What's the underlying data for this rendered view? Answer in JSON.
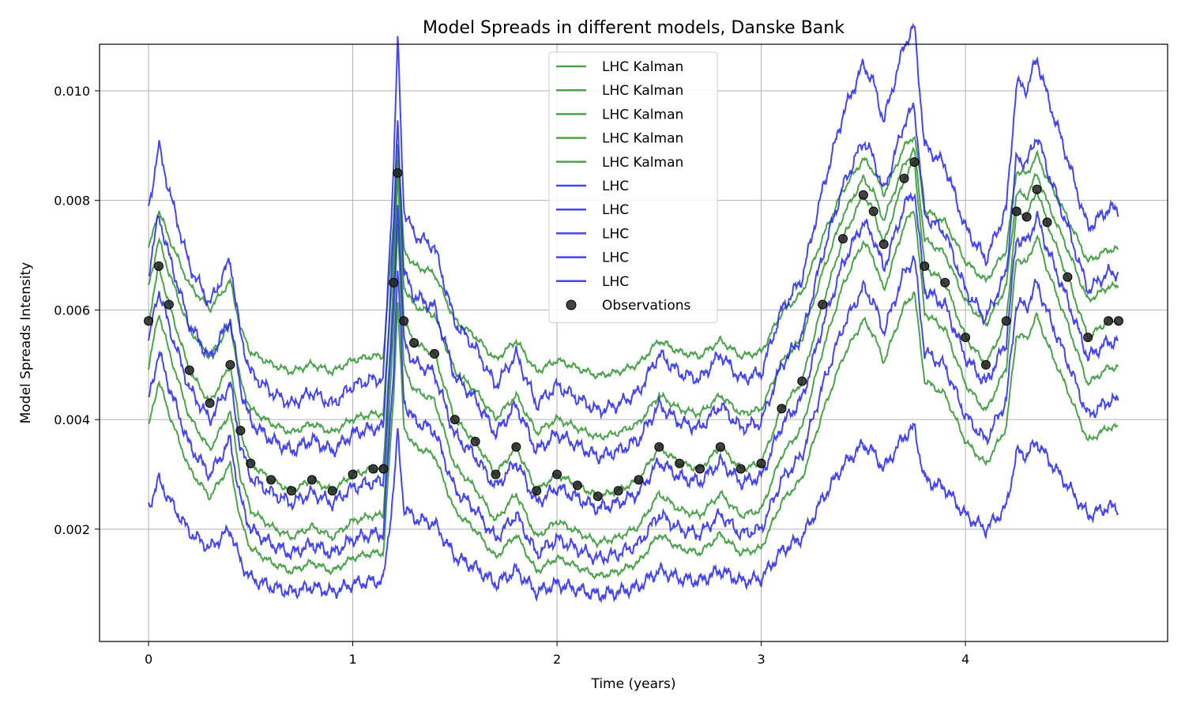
{
  "chart_data": {
    "type": "line",
    "title": "Model Spreads in different models, Danske Bank",
    "xlabel": "Time (years)",
    "ylabel": "Model Spreads Intensity",
    "xlim": [
      -0.24,
      4.99
    ],
    "ylim": [
      -5e-05,
      0.01085
    ],
    "xticks": [
      0,
      1,
      2,
      3,
      4
    ],
    "xtick_labels": [
      "0",
      "1",
      "2",
      "3",
      "4"
    ],
    "yticks": [
      0.002,
      0.004,
      0.006,
      0.008,
      0.01
    ],
    "ytick_labels": [
      "0.002",
      "0.004",
      "0.006",
      "0.008",
      "0.010"
    ],
    "grid": true,
    "legend_position": "top-center",
    "colors": {
      "kalman": "#2e932e",
      "lhc": "#2424f0",
      "observations": "#222222"
    },
    "observations": {
      "name": "Observations",
      "x": [
        0,
        0.05,
        0.1,
        0.2,
        0.3,
        0.4,
        0.45,
        0.5,
        0.6,
        0.7,
        0.8,
        0.9,
        1.0,
        1.1,
        1.15,
        1.2,
        1.22,
        1.25,
        1.3,
        1.4,
        1.5,
        1.6,
        1.7,
        1.8,
        1.9,
        2.0,
        2.1,
        2.2,
        2.3,
        2.4,
        2.5,
        2.6,
        2.7,
        2.8,
        2.9,
        3.0,
        3.1,
        3.2,
        3.3,
        3.4,
        3.5,
        3.55,
        3.6,
        3.7,
        3.75,
        3.8,
        3.9,
        4.0,
        4.1,
        4.2,
        4.25,
        4.3,
        4.35,
        4.4,
        4.5,
        4.6,
        4.7,
        4.75
      ],
      "y": [
        0.0058,
        0.0068,
        0.0061,
        0.0049,
        0.0043,
        0.005,
        0.0038,
        0.0032,
        0.0029,
        0.0027,
        0.0029,
        0.0027,
        0.003,
        0.0031,
        0.0031,
        0.0065,
        0.0085,
        0.0058,
        0.0054,
        0.0052,
        0.004,
        0.0036,
        0.003,
        0.0035,
        0.0027,
        0.003,
        0.0028,
        0.0026,
        0.0027,
        0.0029,
        0.0035,
        0.0032,
        0.0031,
        0.0035,
        0.0031,
        0.0032,
        0.0042,
        0.0047,
        0.0061,
        0.0073,
        0.0081,
        0.0078,
        0.0072,
        0.0084,
        0.0087,
        0.0068,
        0.0065,
        0.0055,
        0.005,
        0.0058,
        0.0078,
        0.0077,
        0.0082,
        0.0076,
        0.0066,
        0.0055,
        0.0058,
        0.0058
      ]
    },
    "series": [
      {
        "name": "LHC Kalman",
        "kind": "kalman",
        "offset": 0.00175,
        "scale": 0.72
      },
      {
        "name": "LHC Kalman",
        "kind": "kalman",
        "offset": 0.00085,
        "scale": 0.86
      },
      {
        "name": "LHC Kalman",
        "kind": "kalman",
        "offset": 0.0,
        "scale": 1.0
      },
      {
        "name": "LHC Kalman",
        "kind": "kalman",
        "offset": -0.00085,
        "scale": 1.0
      },
      {
        "name": "LHC Kalman",
        "kind": "kalman",
        "offset": -0.0017,
        "scale": 0.85
      },
      {
        "name": "LHC",
        "kind": "lhc",
        "offset": 0.0018,
        "scale": 1.15
      },
      {
        "name": "LHC",
        "kind": "lhc",
        "offset": 0.0008,
        "scale": 1.05
      },
      {
        "name": "LHC",
        "kind": "lhc",
        "offset": -0.0003,
        "scale": 0.95
      },
      {
        "name": "LHC",
        "kind": "lhc",
        "offset": -0.0013,
        "scale": 0.9
      },
      {
        "name": "LHC",
        "kind": "lhc",
        "offset": -0.0026,
        "scale": 0.5
      }
    ]
  }
}
